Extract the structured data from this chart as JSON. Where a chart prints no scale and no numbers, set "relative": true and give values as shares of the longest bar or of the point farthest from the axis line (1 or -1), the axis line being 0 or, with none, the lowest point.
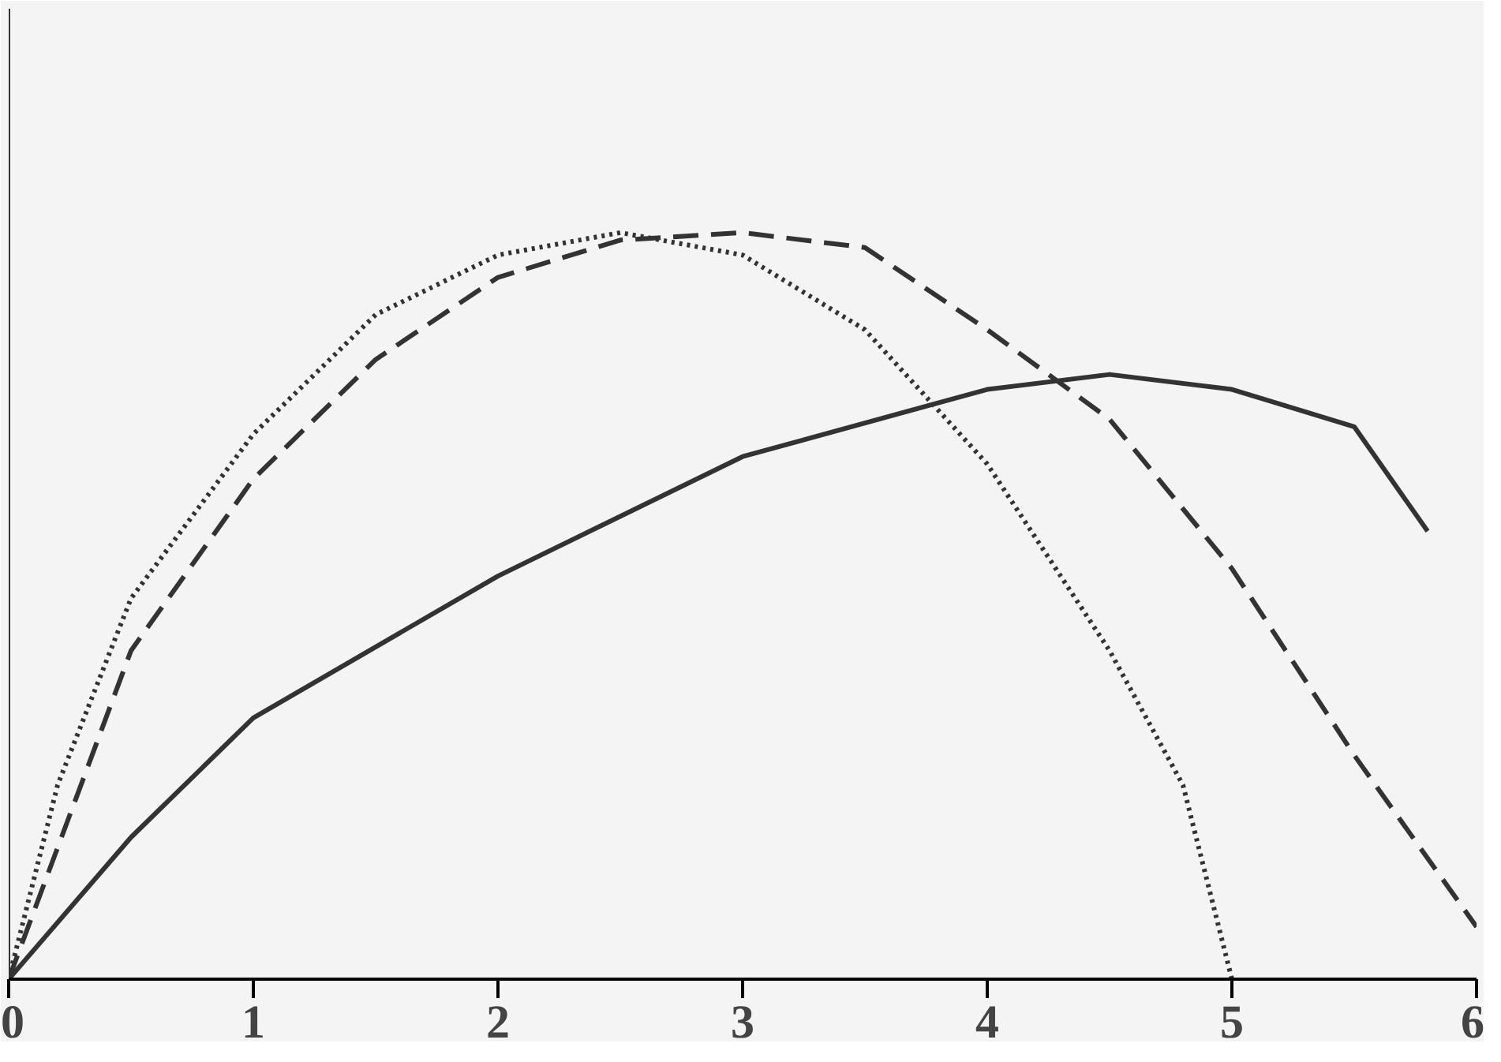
{
  "chart_data": {
    "type": "line",
    "relative": true,
    "xlim": [
      0,
      6
    ],
    "xticks": [
      0,
      1,
      2,
      3,
      4,
      5,
      6
    ],
    "grid": false,
    "marker": "none",
    "series": [
      {
        "color": "#333333",
        "line_style": "dotted",
        "x": [
          0,
          0.2,
          0.5,
          1,
          1.5,
          2,
          2.5,
          3,
          3.5,
          4,
          4.5,
          4.8,
          5
        ],
        "values": [
          0,
          0.26,
          0.51,
          0.73,
          0.89,
          0.97,
          1.0,
          0.97,
          0.87,
          0.69,
          0.44,
          0.26,
          0
        ]
      },
      {
        "color": "#333333",
        "line_style": "dashed",
        "x": [
          0,
          0.5,
          1,
          1.5,
          2,
          2.5,
          3,
          3.5,
          4,
          4.5,
          5,
          5.5,
          6
        ],
        "values": [
          0,
          0.44,
          0.67,
          0.83,
          0.94,
          0.99,
          1.0,
          0.98,
          0.87,
          0.75,
          0.55,
          0.3,
          0.07
        ]
      },
      {
        "color": "#333333",
        "line_style": "solid",
        "x": [
          0,
          0.5,
          1,
          2,
          3,
          4,
          4.5,
          5,
          5.5,
          5.8
        ],
        "values": [
          0,
          0.19,
          0.35,
          0.54,
          0.7,
          0.79,
          0.81,
          0.79,
          0.74,
          0.6
        ]
      }
    ]
  }
}
